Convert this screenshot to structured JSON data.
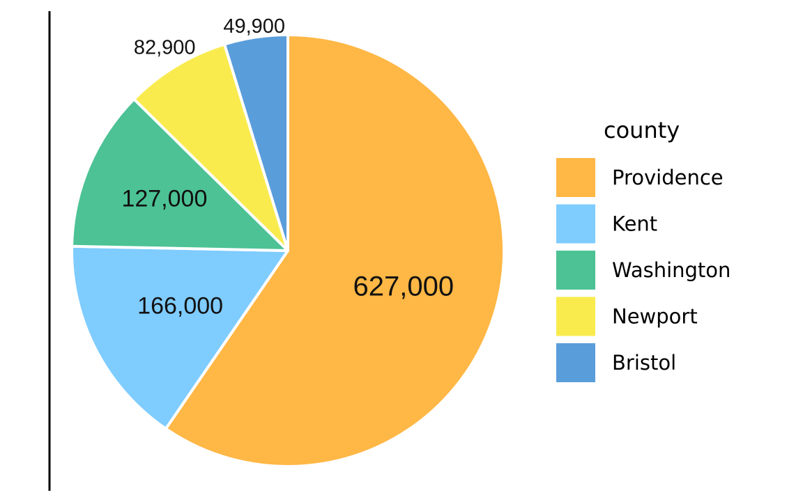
{
  "chart_data": {
    "type": "pie",
    "categories": [
      "Providence",
      "Kent",
      "Washington",
      "Newport",
      "Bristol"
    ],
    "values": [
      627000,
      166000,
      127000,
      82900,
      49900
    ],
    "value_labels": [
      "627,000",
      "166,000",
      "127,000",
      "82,900",
      "49,900"
    ],
    "colors": [
      "#FFB745",
      "#7FCCFF",
      "#4CC295",
      "#F9EB4E",
      "#5A9DDB"
    ],
    "legend_title": "county",
    "legend_placement": "right",
    "start_angle_deg": 0,
    "direction": "clockwise"
  }
}
